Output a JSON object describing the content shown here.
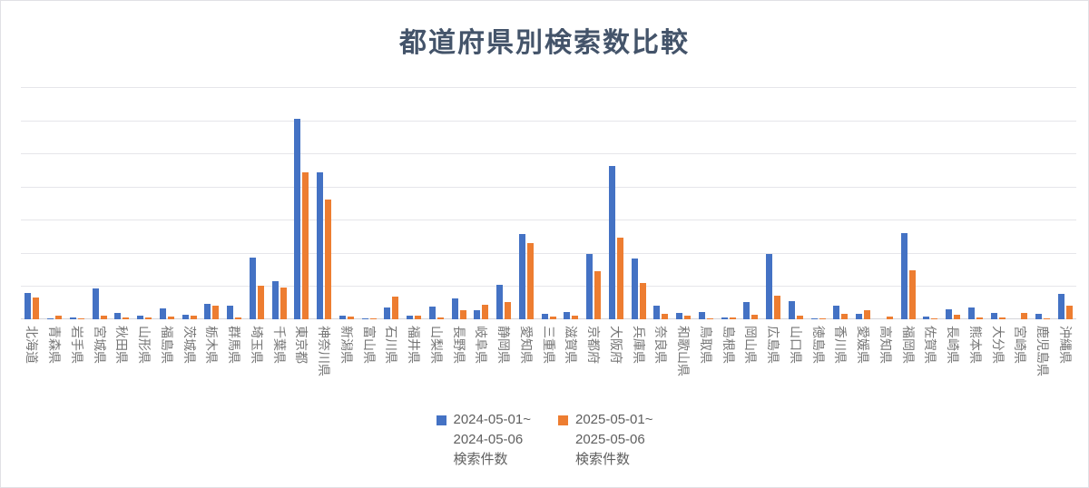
{
  "title": "都道府県別検索数比較",
  "colors": {
    "series_blue": "#4472C4",
    "series_orange": "#ED7D31",
    "title_text": "#44546A",
    "axis_label_text": "#767676",
    "legend_text": "#5f5f5f",
    "gridline": "#e6e6ea"
  },
  "legend": [
    {
      "label": "2024-05-01~\n2024-05-06\n検索件数",
      "color": "#4472C4"
    },
    {
      "label": "2025-05-01~\n2025-05-06\n検索件数",
      "color": "#ED7D31"
    }
  ],
  "chart_data": {
    "type": "bar",
    "title": "都道府県別検索数比較",
    "xlabel": "",
    "ylabel": "",
    "y_axis_tick_labels_visible": false,
    "ylim": [
      0,
      700
    ],
    "gridline_intervals": 7,
    "grid": true,
    "legend_position": "bottom-center",
    "x_tick_label_rotation_deg": 90,
    "categories": [
      "北海道",
      "青森県",
      "岩手県",
      "宮城県",
      "秋田県",
      "山形県",
      "福島県",
      "茨城県",
      "栃木県",
      "群馬県",
      "埼玉県",
      "千葉県",
      "東京都",
      "神奈川県",
      "新潟県",
      "富山県",
      "石川県",
      "福井県",
      "山梨県",
      "長野県",
      "岐阜県",
      "静岡県",
      "愛知県",
      "三重県",
      "滋賀県",
      "京都府",
      "大阪府",
      "兵庫県",
      "奈良県",
      "和歌山県",
      "鳥取県",
      "島根県",
      "岡山県",
      "広島県",
      "山口県",
      "徳島県",
      "香川県",
      "愛媛県",
      "高知県",
      "福岡県",
      "佐賀県",
      "長崎県",
      "熊本県",
      "大分県",
      "宮崎県",
      "鹿児島県",
      "沖縄県"
    ],
    "series": [
      {
        "name": "2024-05-01~2024-05-06 検索件数",
        "color": "#4472C4",
        "values": [
          79,
          2,
          5,
          92,
          19,
          10,
          33,
          13,
          47,
          42,
          185,
          114,
          605,
          442,
          12,
          2,
          35,
          12,
          37,
          62,
          26,
          105,
          258,
          16,
          23,
          198,
          462,
          184,
          42,
          18,
          21,
          6,
          53,
          196,
          55,
          4,
          42,
          17,
          0,
          260,
          8,
          30,
          35,
          19,
          0,
          16,
          76
        ]
      },
      {
        "name": "2025-05-01~2025-05-06 検索件数",
        "color": "#ED7D31",
        "values": [
          66,
          10,
          4,
          10,
          6,
          6,
          8,
          10,
          40,
          5,
          102,
          96,
          442,
          362,
          7,
          2,
          67,
          11,
          5,
          27,
          43,
          52,
          230,
          8,
          11,
          146,
          246,
          110,
          17,
          10,
          3,
          5,
          13,
          72,
          11,
          4,
          17,
          26,
          9,
          149,
          2,
          14,
          5,
          5,
          19,
          3,
          41
        ]
      }
    ]
  }
}
